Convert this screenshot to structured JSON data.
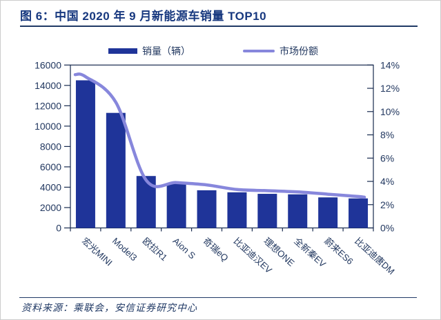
{
  "figure": {
    "title": "图 6：中国 2020 年 9 月新能源车销量 TOP10",
    "source": "资料来源：乘联会，安信证券研究中心"
  },
  "legend": {
    "sales_label": "销量（辆）",
    "share_label": "市场份额"
  },
  "colors": {
    "bar": "#1f3499",
    "line": "#8787dc",
    "title_text": "#17387f",
    "axis_text": "#21375f",
    "frame": "#16294d",
    "divider": "#1f3864",
    "source_text": "#1f3864",
    "page_border": "#cccccc"
  },
  "chart_data": {
    "type": "bar",
    "title": "中国 2020 年 9 月新能源车销量 TOP10",
    "categories": [
      "宏光MINI",
      "Model3",
      "欧拉R1",
      "Aion S",
      "奇瑞eQ",
      "比亚迪汉EV",
      "理想ONE",
      "全新秦EV",
      "蔚来ES6",
      "比亚迪唐DM"
    ],
    "series": [
      {
        "name": "销量（辆）",
        "type": "bar",
        "axis": "left",
        "values": [
          14500,
          11300,
          5100,
          4400,
          3700,
          3500,
          3350,
          3300,
          3000,
          2900
        ]
      },
      {
        "name": "市场份额",
        "type": "line",
        "axis": "right",
        "unit": "%",
        "values": [
          13.0,
          10.8,
          4.1,
          3.9,
          3.7,
          3.3,
          3.2,
          3.1,
          2.9,
          2.7
        ]
      }
    ],
    "left_axis": {
      "min": 0,
      "max": 16000,
      "step": 2000,
      "ticks": [
        "0",
        "2000",
        "4000",
        "6000",
        "8000",
        "10000",
        "12000",
        "14000",
        "16000"
      ]
    },
    "right_axis": {
      "min": 0,
      "max": 14,
      "step": 2,
      "ticks": [
        "0%",
        "2%",
        "4%",
        "6%",
        "8%",
        "10%",
        "12%",
        "14%"
      ]
    },
    "grid": false,
    "legend_position": "top"
  }
}
